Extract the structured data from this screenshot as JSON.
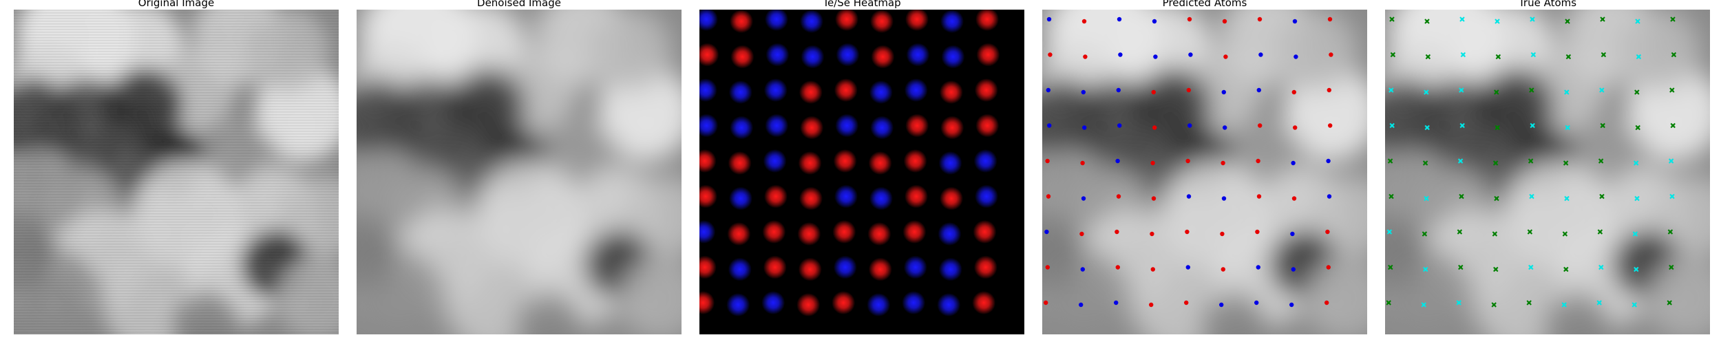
{
  "panels": {
    "original": {
      "title": "Original Image"
    },
    "denoised": {
      "title": "Denoised Image"
    },
    "heatmap": {
      "title": "Te/Se Heatmap"
    },
    "predicted": {
      "title": "Predicted Atoms"
    },
    "true": {
      "title": "True Atoms"
    }
  },
  "colors": {
    "te": "#ff1a1a",
    "se": "#1a1aff",
    "predicted_red": "#e60000",
    "predicted_blue": "#0000e6",
    "true_green": "#008000",
    "true_cyan": "#00e5e5",
    "background_dark": "#000000"
  },
  "lattice": {
    "rows": 9,
    "cols": 9,
    "species": [
      [
        "se",
        "te",
        "se",
        "se",
        "te",
        "te",
        "te",
        "se",
        "te"
      ],
      [
        "te",
        "te",
        "se",
        "se",
        "se",
        "te",
        "se",
        "se",
        "te"
      ],
      [
        "se",
        "se",
        "se",
        "te",
        "te",
        "se",
        "se",
        "te",
        "te"
      ],
      [
        "se",
        "se",
        "se",
        "te",
        "se",
        "se",
        "te",
        "te",
        "te"
      ],
      [
        "te",
        "te",
        "se",
        "te",
        "te",
        "te",
        "te",
        "se",
        "se"
      ],
      [
        "te",
        "se",
        "te",
        "te",
        "se",
        "se",
        "te",
        "te",
        "se"
      ],
      [
        "se",
        "te",
        "te",
        "te",
        "te",
        "te",
        "te",
        "se",
        "te"
      ],
      [
        "te",
        "se",
        "te",
        "te",
        "se",
        "te",
        "se",
        "se",
        "te"
      ],
      [
        "te",
        "se",
        "se",
        "te",
        "te",
        "se",
        "se",
        "se",
        "te"
      ]
    ],
    "true_markers": [
      [
        "green",
        "green",
        "cyan",
        "cyan",
        "cyan",
        "green",
        "green",
        "cyan",
        "green"
      ],
      [
        "green",
        "green",
        "cyan",
        "green",
        "cyan",
        "green",
        "green",
        "cyan",
        "green"
      ],
      [
        "cyan",
        "cyan",
        "cyan",
        "green",
        "green",
        "cyan",
        "cyan",
        "green",
        "green"
      ],
      [
        "cyan",
        "cyan",
        "cyan",
        "green",
        "cyan",
        "cyan",
        "green",
        "green",
        "green"
      ],
      [
        "green",
        "green",
        "cyan",
        "green",
        "green",
        "green",
        "green",
        "cyan",
        "cyan"
      ],
      [
        "green",
        "cyan",
        "green",
        "green",
        "cyan",
        "cyan",
        "green",
        "cyan",
        "cyan"
      ],
      [
        "cyan",
        "green",
        "green",
        "green",
        "green",
        "green",
        "green",
        "cyan",
        "green"
      ],
      [
        "green",
        "cyan",
        "green",
        "green",
        "cyan",
        "green",
        "cyan",
        "cyan",
        "green"
      ],
      [
        "green",
        "cyan",
        "cyan",
        "green",
        "green",
        "cyan",
        "cyan",
        "cyan",
        "green"
      ]
    ]
  }
}
